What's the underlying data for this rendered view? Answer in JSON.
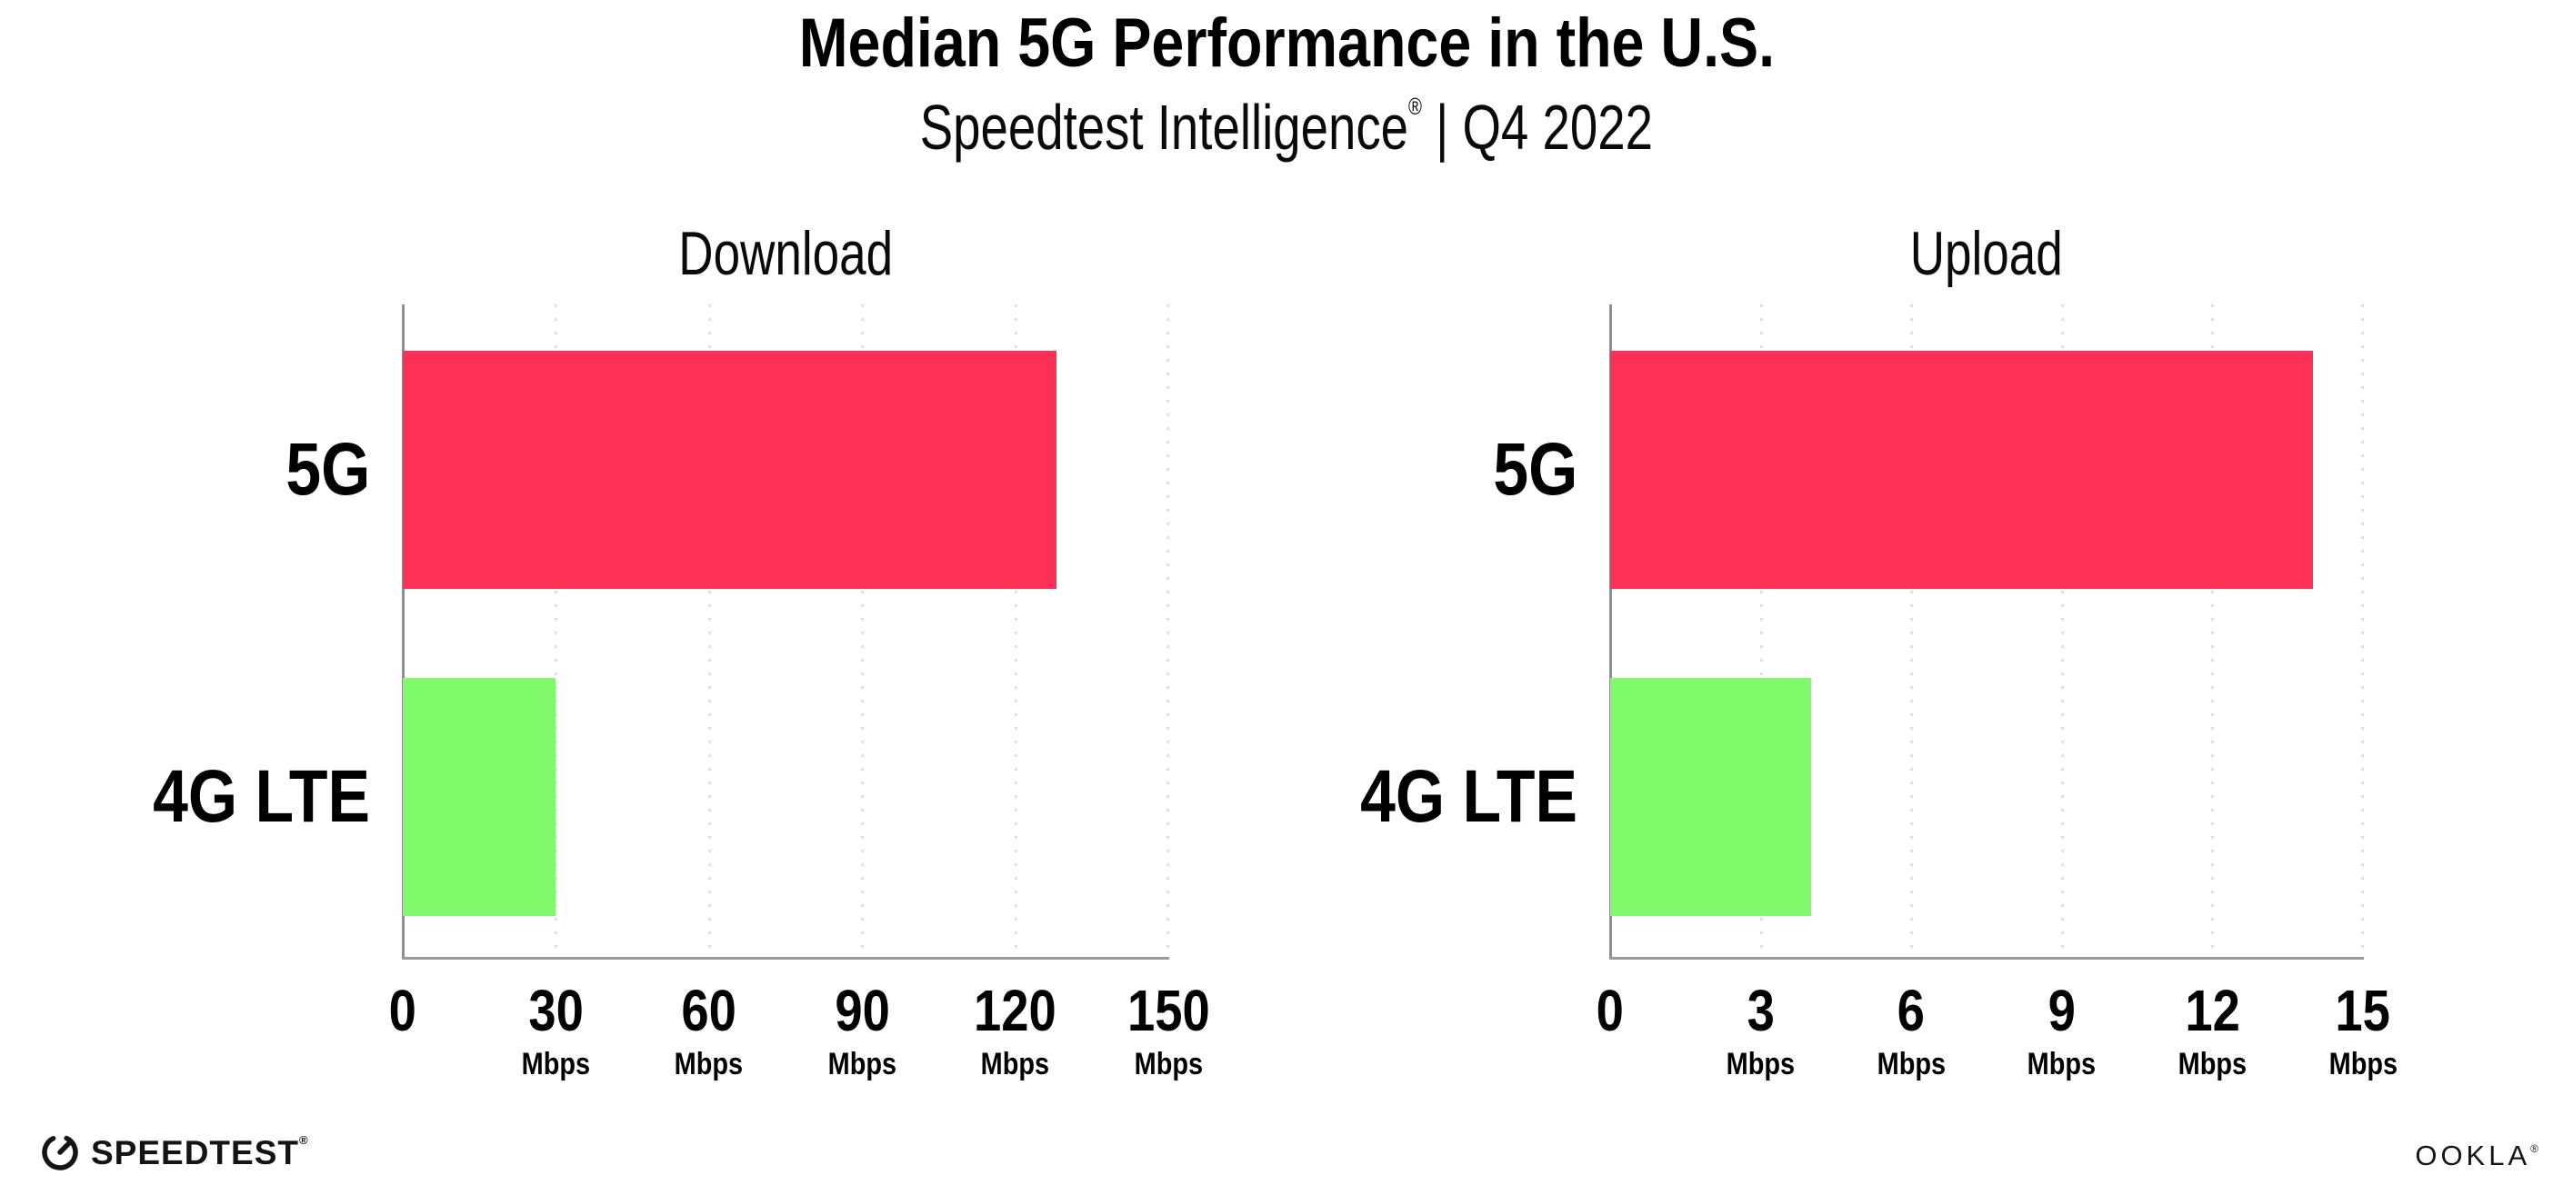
{
  "header": {
    "title": "Median 5G Performance in the U.S.",
    "subtitle": {
      "product": "Speedtest Intelligence",
      "registered_mark": "®",
      "period": " | Q4 2022"
    }
  },
  "chart_data": [
    {
      "type": "bar",
      "orientation": "horizontal",
      "title": "Download",
      "categories": [
        "5G",
        "4G LTE"
      ],
      "values": [
        128,
        30
      ],
      "unit": "Mbps",
      "xlim": [
        0,
        150
      ],
      "xticks": [
        0,
        30,
        60,
        90,
        120,
        150
      ],
      "xtick_labels": [
        "0",
        "30",
        "60",
        "90",
        "120",
        "150"
      ],
      "bar_colors": [
        "#ff3056",
        "#80fa6a"
      ],
      "grid": "vertical-dotted",
      "legend": "none"
    },
    {
      "type": "bar",
      "orientation": "horizontal",
      "title": "Upload",
      "categories": [
        "5G",
        "4G LTE"
      ],
      "values": [
        14,
        4
      ],
      "unit": "Mbps",
      "xlim": [
        0,
        15
      ],
      "xticks": [
        0,
        3,
        6,
        9,
        12,
        15
      ],
      "xtick_labels": [
        "0",
        "3",
        "6",
        "9",
        "12",
        "15"
      ],
      "bar_colors": [
        "#ff3056",
        "#80fa6a"
      ],
      "grid": "vertical-dotted",
      "legend": "none"
    }
  ],
  "footer": {
    "speedtest_wordmark": "SPEEDTEST",
    "speedtest_mark": "®",
    "ookla_wordmark": "OOKLA",
    "ookla_mark": "®"
  },
  "colors": {
    "bar_5g": "#ff3056",
    "bar_4g_lte": "#80fa6a",
    "gridline": "#dfdfe8",
    "axis": "#9b9b9b",
    "text": "#000000"
  }
}
